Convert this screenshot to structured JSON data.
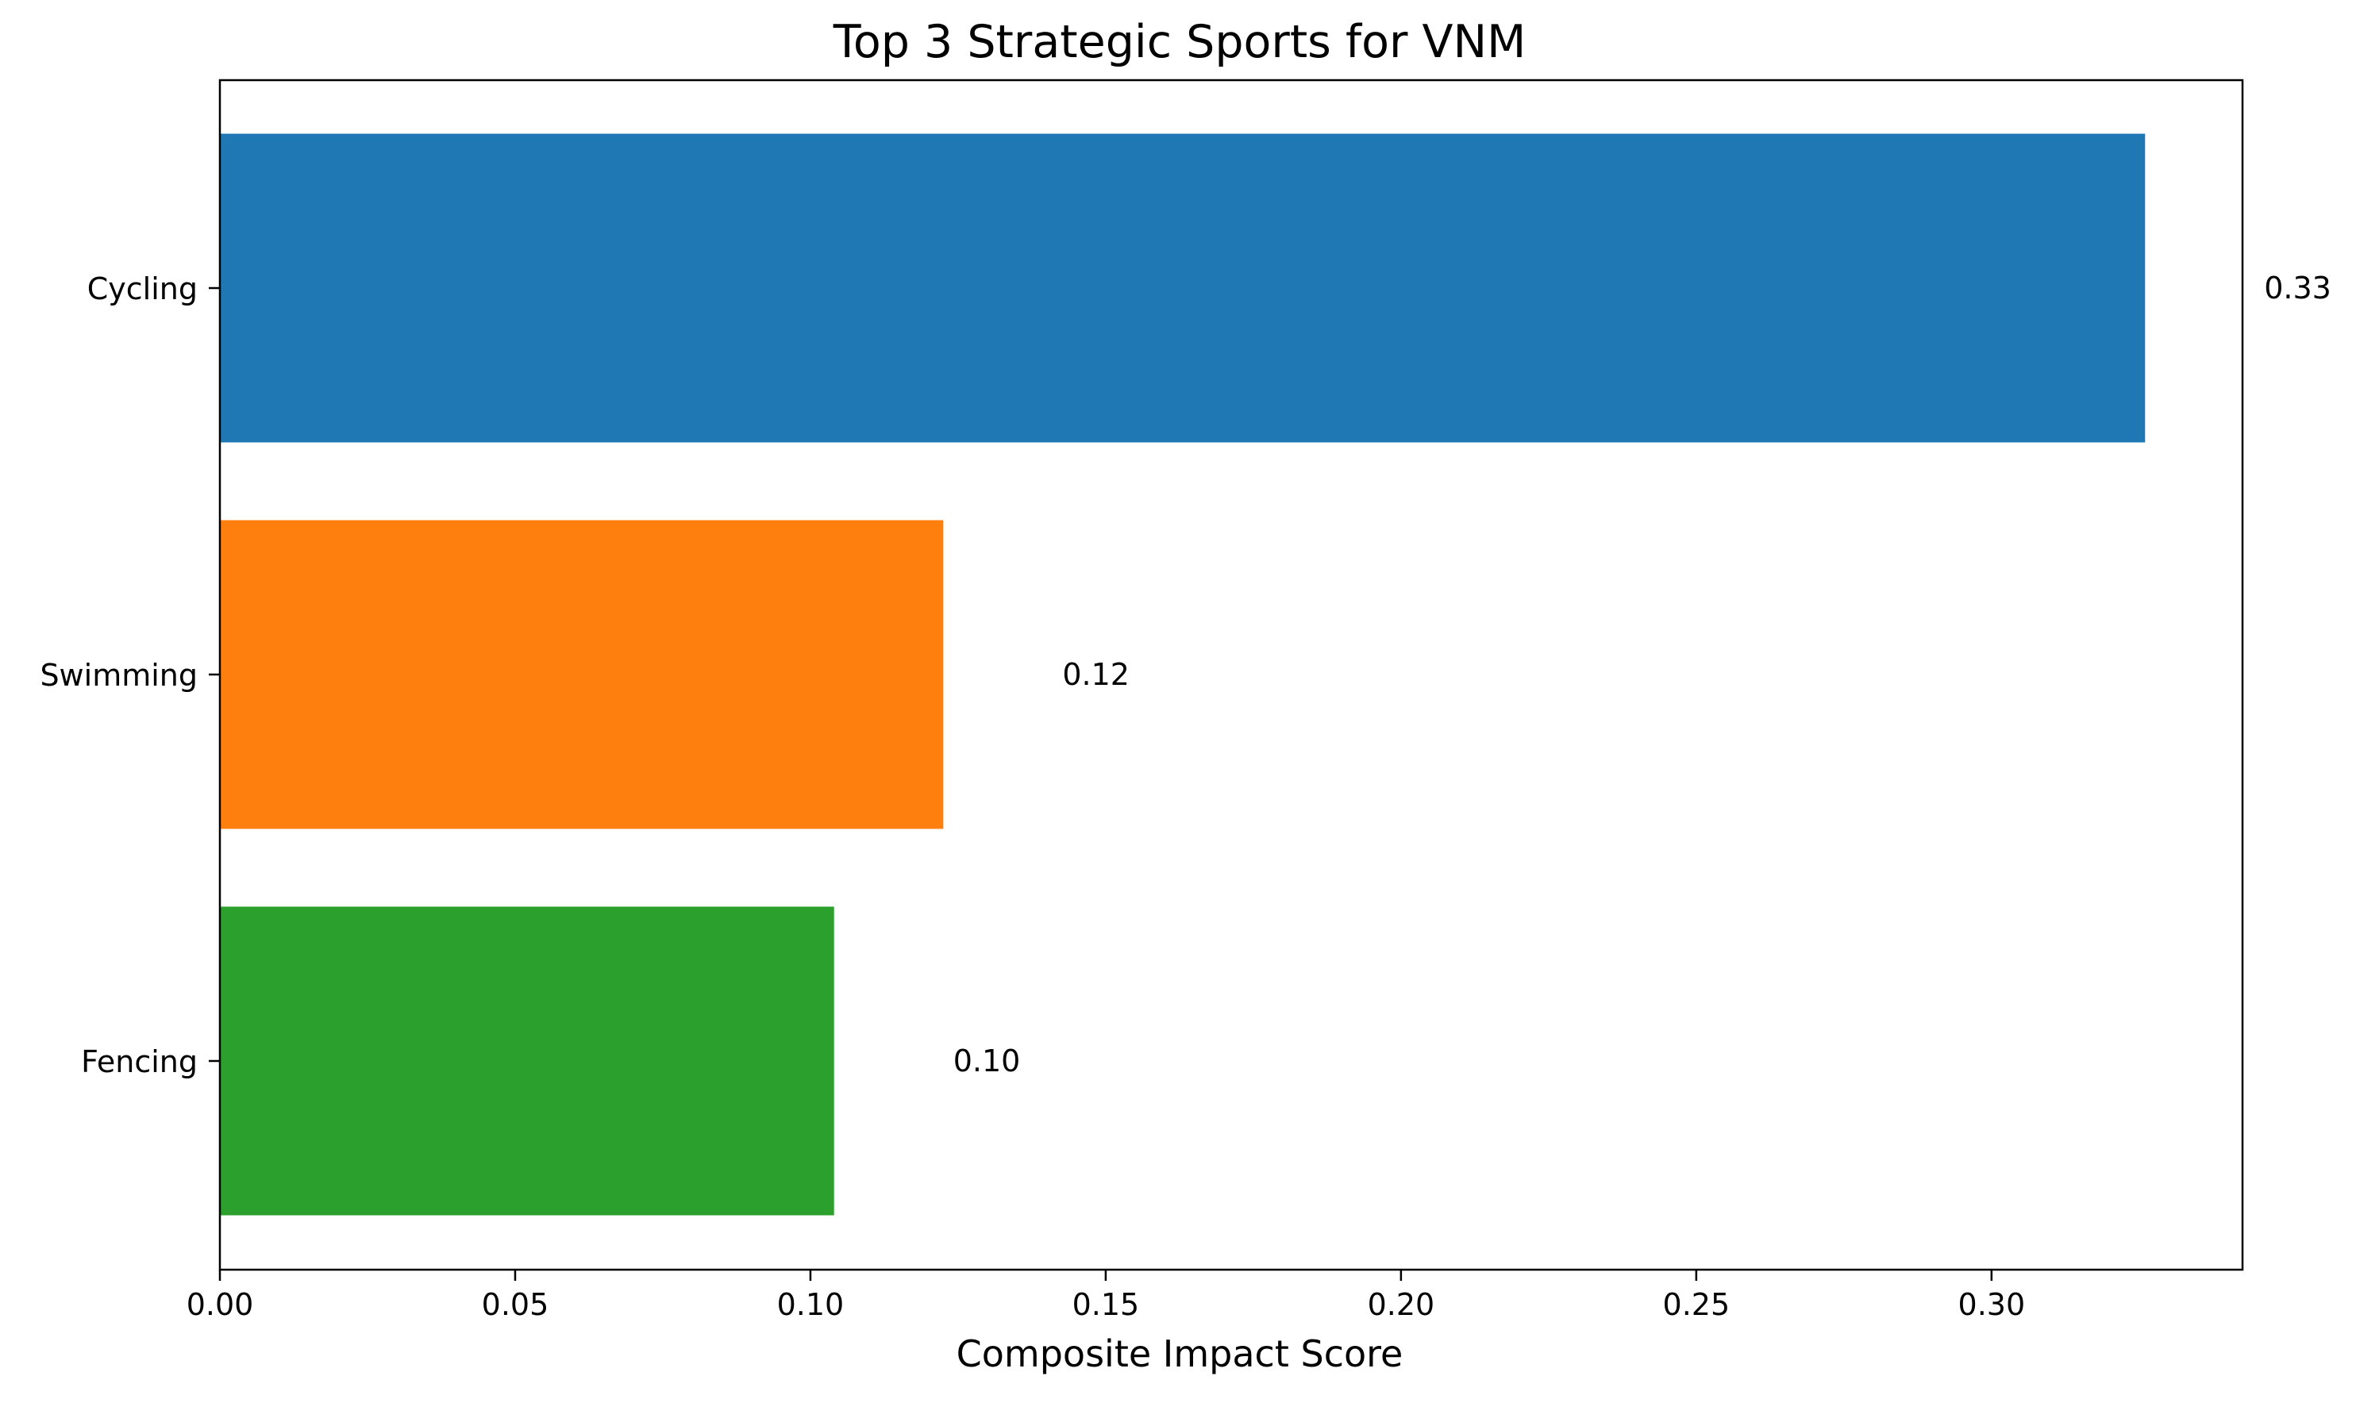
{
  "chart_data": {
    "type": "bar",
    "orientation": "horizontal",
    "title": "Top 3 Strategic Sports for VNM",
    "xlabel": "Composite Impact Score",
    "ylabel": "",
    "categories": [
      "Cycling",
      "Swimming",
      "Fencing"
    ],
    "values": [
      0.326,
      0.1225,
      0.104
    ],
    "value_labels": [
      "0.33",
      "0.12",
      "0.10"
    ],
    "colors": [
      "#1f77b4",
      "#ff7f0e",
      "#2ca02c"
    ],
    "xlim": [
      0,
      0.3425
    ],
    "xticks": [
      0.0,
      0.05,
      0.1,
      0.15,
      0.2,
      0.25,
      0.3
    ],
    "xtick_labels": [
      "0.00",
      "0.05",
      "0.10",
      "0.15",
      "0.20",
      "0.25",
      "0.30"
    ],
    "grid": false,
    "legend": "none"
  }
}
